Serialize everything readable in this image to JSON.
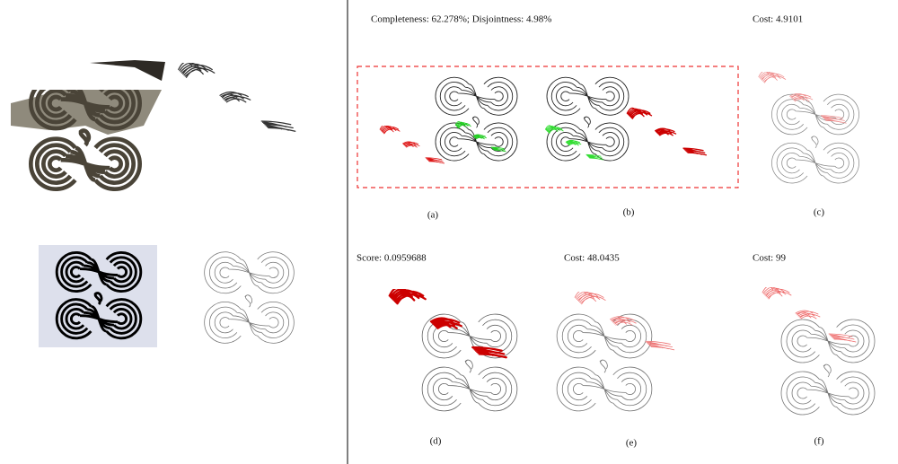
{
  "annotations": {
    "completeness": "Completeness: 62.278%; Disjointness: 4.98%",
    "cost_c": "Cost: 4.9101",
    "score_d": "Score: 0.0959688",
    "cost_e": "Cost: 48.0435",
    "cost_f": "Cost: 99"
  },
  "captions": [
    "(a)",
    "(b)",
    "(c)",
    "(d)",
    "(e)",
    "(f)"
  ]
}
